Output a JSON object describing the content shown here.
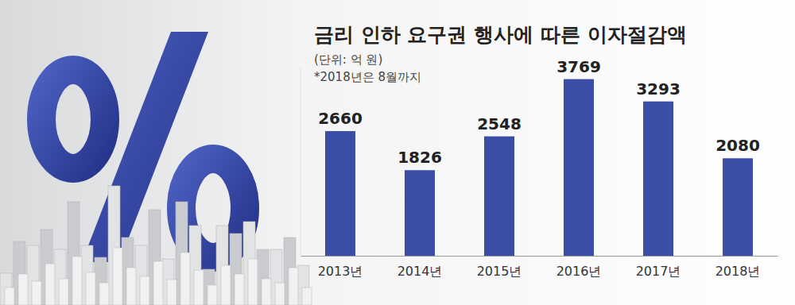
{
  "chart_data": {
    "type": "bar",
    "title": "금리 인하 요구권 행사에 따른 이자절감액",
    "subtitle": "(단위: 억 원)",
    "annotations": [
      "*2018년은 8월까지"
    ],
    "categories": [
      "2013년",
      "2014년",
      "2015년",
      "2016년",
      "2017년",
      "2018년"
    ],
    "values": [
      2660,
      1826,
      2548,
      3769,
      3293,
      2080
    ],
    "color": "#3a4ea6",
    "ylim": [
      0,
      4000
    ],
    "data_labels": true,
    "tick_labels": "x",
    "grid": false
  }
}
